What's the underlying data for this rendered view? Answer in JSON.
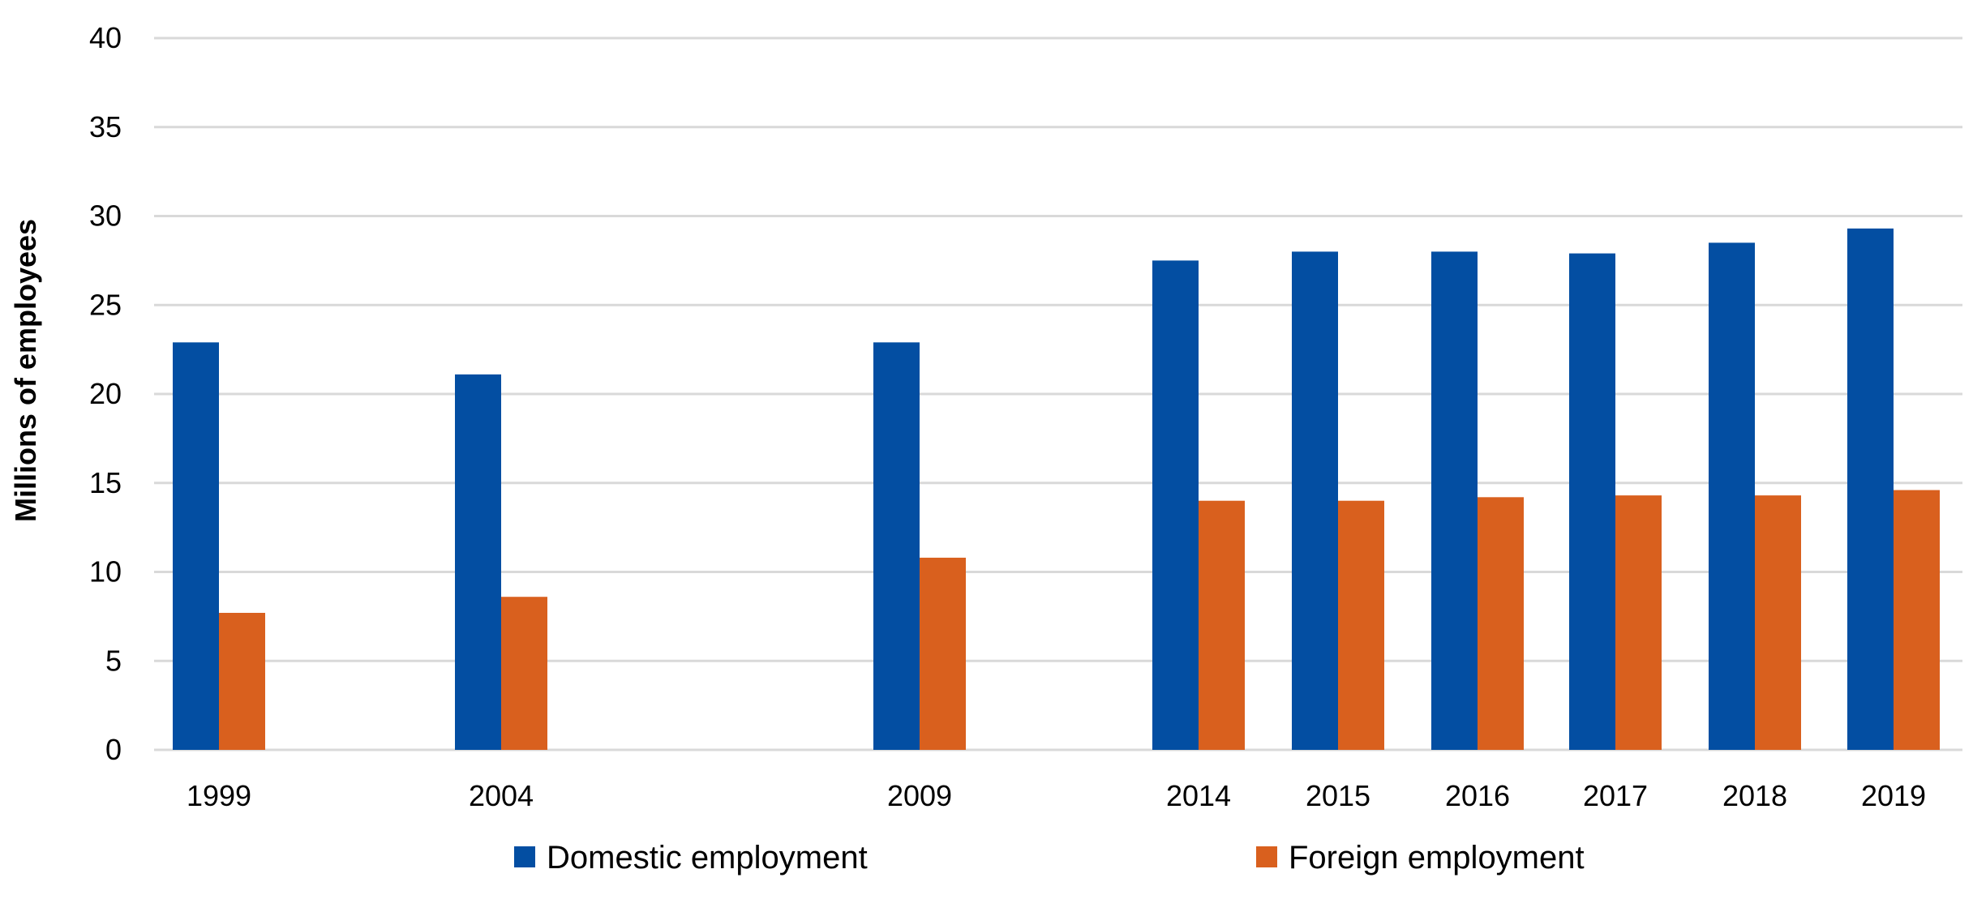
{
  "chart_data": {
    "type": "bar",
    "title": "",
    "xlabel": "",
    "ylabel": "Millions of employees",
    "ylim": [
      0,
      40
    ],
    "yticks": [
      0,
      5,
      10,
      15,
      20,
      25,
      30,
      35,
      40
    ],
    "grid": true,
    "legend_position": "bottom",
    "categories": [
      "1999",
      "2004",
      "2009",
      "2014",
      "2015",
      "2016",
      "2017",
      "2018",
      "2019"
    ],
    "series": [
      {
        "name": "Domestic employment",
        "color": "#034ea2",
        "values": [
          22.9,
          21.1,
          22.9,
          27.5,
          28.0,
          28.0,
          27.9,
          28.5,
          29.3
        ]
      },
      {
        "name": "Foreign employment",
        "color": "#d9601e",
        "values": [
          7.7,
          8.6,
          10.8,
          14.0,
          14.0,
          14.2,
          14.3,
          14.3,
          14.6
        ]
      }
    ]
  }
}
